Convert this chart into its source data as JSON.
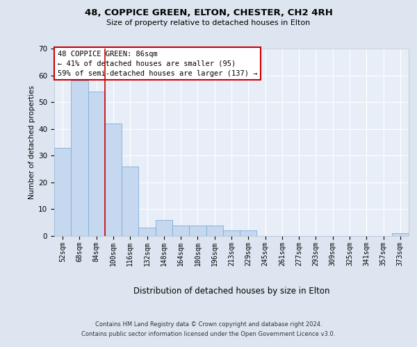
{
  "title1": "48, COPPICE GREEN, ELTON, CHESTER, CH2 4RH",
  "title2": "Size of property relative to detached houses in Elton",
  "xlabel": "Distribution of detached houses by size in Elton",
  "ylabel": "Number of detached properties",
  "categories": [
    "52sqm",
    "68sqm",
    "84sqm",
    "100sqm",
    "116sqm",
    "132sqm",
    "148sqm",
    "164sqm",
    "180sqm",
    "196sqm",
    "213sqm",
    "229sqm",
    "245sqm",
    "261sqm",
    "277sqm",
    "293sqm",
    "309sqm",
    "325sqm",
    "341sqm",
    "357sqm",
    "373sqm"
  ],
  "values": [
    33,
    58,
    54,
    42,
    26,
    3,
    6,
    4,
    4,
    4,
    2,
    2,
    0,
    0,
    0,
    0,
    0,
    0,
    0,
    0,
    1
  ],
  "bar_color": "#c5d8f0",
  "bar_edge_color": "#7aadd4",
  "vline_color": "#cc0000",
  "vline_position": 2.5,
  "annotation_line1": "48 COPPICE GREEN: 86sqm",
  "annotation_line2": "← 41% of detached houses are smaller (95)",
  "annotation_line3": "59% of semi-detached houses are larger (137) →",
  "annotation_box_edge": "#cc0000",
  "footer1": "Contains HM Land Registry data © Crown copyright and database right 2024.",
  "footer2": "Contains public sector information licensed under the Open Government Licence v3.0.",
  "ylim": [
    0,
    70
  ],
  "yticks": [
    0,
    10,
    20,
    30,
    40,
    50,
    60,
    70
  ],
  "bg_color": "#dde6f0",
  "plot_bg": "#e8eef8",
  "grid_color": "#ffffff",
  "title1_fontsize": 9.5,
  "title2_fontsize": 8.0,
  "xlabel_fontsize": 8.5,
  "ylabel_fontsize": 7.5,
  "tick_fontsize": 7.0,
  "footer_fontsize": 6.0,
  "annot_fontsize": 7.5
}
